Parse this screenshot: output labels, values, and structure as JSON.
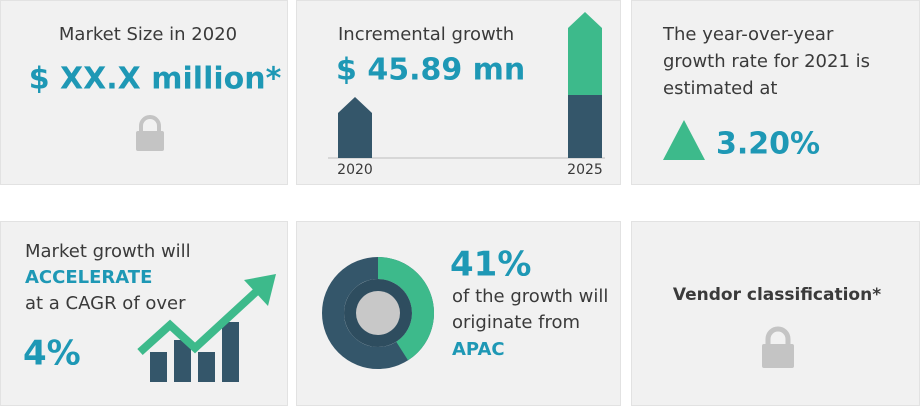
{
  "cards": [
    {
      "label": "Market Size in 2020",
      "value": "$ XX.X million*"
    },
    {
      "label": "Incremental growth",
      "value": "$ 45.89 mn",
      "years": [
        "2020",
        "2025"
      ]
    },
    {
      "lines": [
        "The year-over-year",
        "growth rate for 2021 is",
        "estimated at"
      ],
      "value": "3.20%"
    },
    {
      "lines": [
        "Market growth will",
        "ACCELERATE",
        "at a CAGR of over"
      ],
      "value": "4%"
    },
    {
      "share": {
        "value": 41,
        "label": "41%"
      },
      "lines": [
        "of the growth will",
        "originate from"
      ],
      "region": "APAC"
    },
    {
      "label": "Vendor classification*"
    }
  ]
}
